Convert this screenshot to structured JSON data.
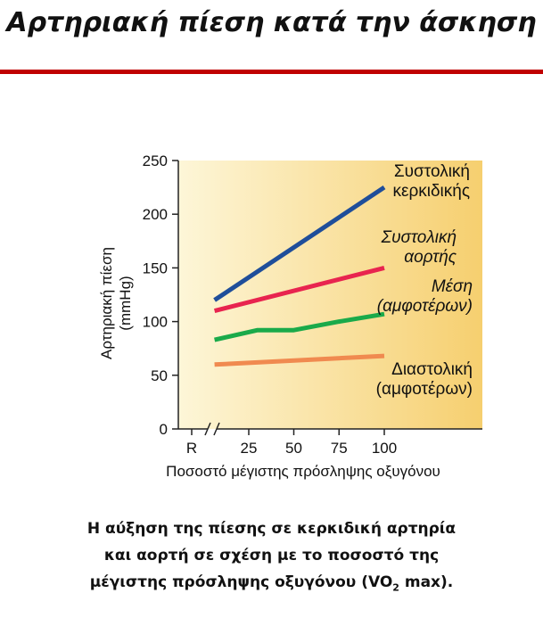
{
  "slide": {
    "title": "Αρτηριακή πίεση κατά την άσκηση",
    "caption_line1": "Η αύξηση της πίεσης σε κερκιδική αρτηρία",
    "caption_line2": "και αορτή σε σχέση με το ποσοστό της",
    "caption_line3_before": "μέγιστης πρόσληψης οξυγόνου (VO",
    "caption_line3_sub": "2",
    "caption_line3_after": " max)."
  },
  "colors": {
    "title_rule": "#c00000",
    "plot_bg_left": "#fdf6d8",
    "plot_bg_right": "#f6cf6f"
  },
  "chart_data": {
    "type": "line",
    "ylabel_line1": "Αρτηριακή πίεση",
    "ylabel_line2": "(mmHg)",
    "xlabel": "Ποσοστό μέγιστης πρόσληψης οξυγόνου",
    "ylim": [
      0,
      250
    ],
    "yticks": [
      0,
      50,
      100,
      150,
      200,
      250
    ],
    "xlim": [
      0,
      110
    ],
    "x_axis_break": true,
    "xticks": [
      {
        "label": "R",
        "x": 0
      },
      {
        "label": "25",
        "x": 25
      },
      {
        "label": "50",
        "x": 50
      },
      {
        "label": "75",
        "x": 75
      },
      {
        "label": "100",
        "x": 100
      }
    ],
    "series": [
      {
        "label_lines": [
          "Συστολική",
          "κερκιδικής"
        ],
        "label_italic": false,
        "color": "#1f4e9a",
        "points": [
          [
            10,
            120
          ],
          [
            100,
            225
          ]
        ]
      },
      {
        "label_lines": [
          "Συστολική",
          "αορτής"
        ],
        "label_italic": true,
        "color": "#e8244f",
        "points": [
          [
            10,
            110
          ],
          [
            100,
            150
          ]
        ]
      },
      {
        "label_lines": [
          "Μέση",
          "(αμφοτέρων)"
        ],
        "label_italic": true,
        "color": "#1aaa4a",
        "points": [
          [
            10,
            83
          ],
          [
            30,
            92
          ],
          [
            50,
            92
          ],
          [
            75,
            100
          ],
          [
            100,
            107
          ]
        ]
      },
      {
        "label_lines": [
          "Διαστολική",
          "(αμφοτέρων)"
        ],
        "label_italic": false,
        "color": "#f08a50",
        "points": [
          [
            10,
            60
          ],
          [
            100,
            68
          ]
        ]
      }
    ]
  }
}
